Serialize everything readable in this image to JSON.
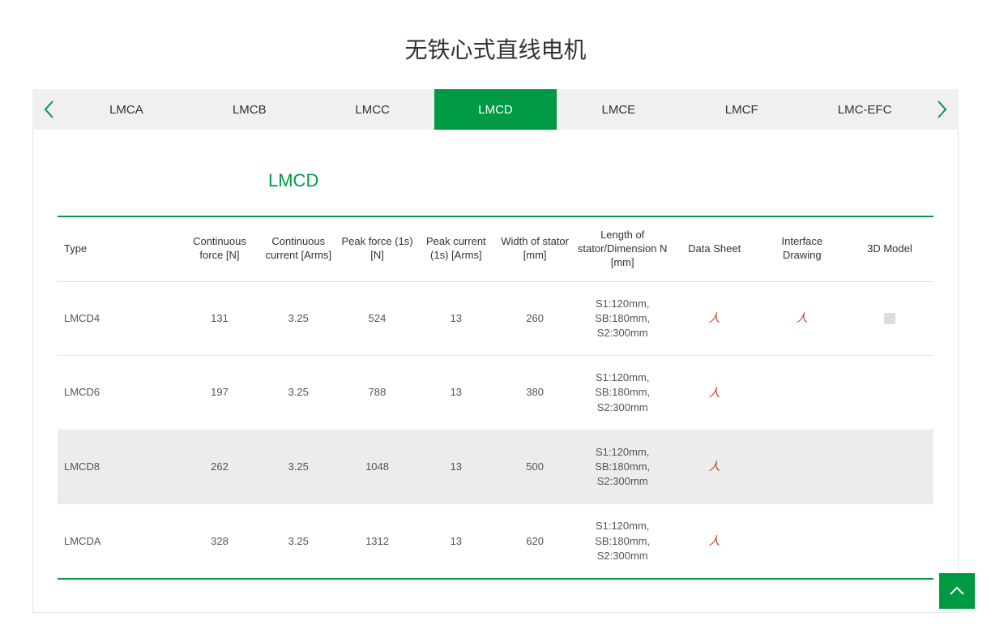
{
  "colors": {
    "accent": "#009a44",
    "pdf": "#c0392b",
    "tab_bg": "#f0f0f0",
    "row_highlight": "#ececec",
    "border": "#e5e5e5"
  },
  "page_title": "无铁心式直线电机",
  "tabs": {
    "items": [
      "LMCA",
      "LMCB",
      "LMCC",
      "LMCD",
      "LMCE",
      "LMCF",
      "LMC-EFC"
    ],
    "active_index": 3
  },
  "section_heading": "LMCD",
  "table": {
    "columns": [
      "Type",
      "Continuous force [N]",
      "Continuous current [Arms]",
      "Peak force (1s) [N]",
      "Peak current (1s) [Arms]",
      "Width of stator [mm]",
      "Length of stator/Dimension N [mm]",
      "Data Sheet",
      "Interface Drawing",
      "3D Model"
    ],
    "col_widths_pct": [
      14,
      9,
      9,
      9,
      9,
      9,
      11,
      10,
      10,
      10
    ],
    "rows": [
      {
        "type": "LMCD4",
        "cont_force": "131",
        "cont_current": "3.25",
        "peak_force": "524",
        "peak_current": "13",
        "width": "260",
        "length": "S1:120mm, SB:180mm, S2:300mm",
        "datasheet": true,
        "interface": true,
        "model": true,
        "highlight": false
      },
      {
        "type": "LMCD6",
        "cont_force": "197",
        "cont_current": "3.25",
        "peak_force": "788",
        "peak_current": "13",
        "width": "380",
        "length": "S1:120mm, SB:180mm, S2:300mm",
        "datasheet": true,
        "interface": false,
        "model": false,
        "highlight": false
      },
      {
        "type": "LMCD8",
        "cont_force": "262",
        "cont_current": "3.25",
        "peak_force": "1048",
        "peak_current": "13",
        "width": "500",
        "length": "S1:120mm, SB:180mm, S2:300mm",
        "datasheet": true,
        "interface": false,
        "model": false,
        "highlight": true
      },
      {
        "type": "LMCDA",
        "cont_force": "328",
        "cont_current": "3.25",
        "peak_force": "1312",
        "peak_current": "13",
        "width": "620",
        "length": "S1:120mm, SB:180mm, S2:300mm",
        "datasheet": true,
        "interface": false,
        "model": false,
        "highlight": false
      }
    ]
  }
}
